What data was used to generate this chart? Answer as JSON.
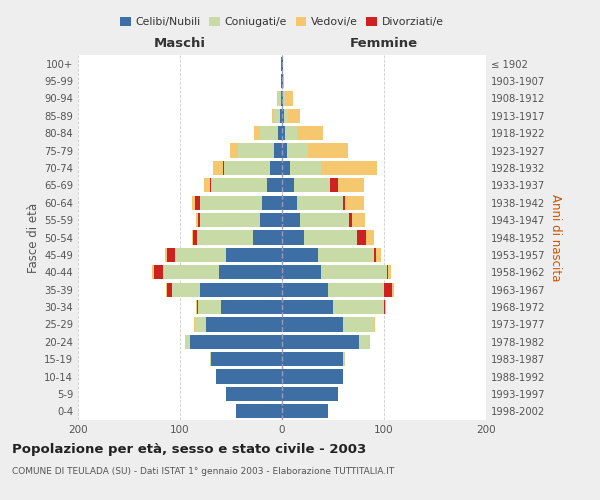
{
  "age_groups": [
    "0-4",
    "5-9",
    "10-14",
    "15-19",
    "20-24",
    "25-29",
    "30-34",
    "35-39",
    "40-44",
    "45-49",
    "50-54",
    "55-59",
    "60-64",
    "65-69",
    "70-74",
    "75-79",
    "80-84",
    "85-89",
    "90-94",
    "95-99",
    "100+"
  ],
  "birth_years": [
    "1998-2002",
    "1993-1997",
    "1988-1992",
    "1983-1987",
    "1978-1982",
    "1973-1977",
    "1968-1972",
    "1963-1967",
    "1958-1962",
    "1953-1957",
    "1948-1952",
    "1943-1947",
    "1938-1942",
    "1933-1937",
    "1928-1932",
    "1923-1927",
    "1918-1922",
    "1913-1917",
    "1908-1912",
    "1903-1907",
    "≤ 1902"
  ],
  "males": {
    "celibi": [
      45,
      55,
      65,
      70,
      90,
      75,
      60,
      80,
      62,
      55,
      28,
      22,
      20,
      15,
      12,
      8,
      4,
      2,
      1,
      1,
      1
    ],
    "coniugati": [
      0,
      0,
      0,
      1,
      5,
      10,
      22,
      28,
      55,
      50,
      55,
      58,
      60,
      55,
      45,
      35,
      18,
      6,
      3,
      0,
      0
    ],
    "vedovi": [
      0,
      0,
      0,
      0,
      0,
      1,
      1,
      1,
      2,
      2,
      1,
      2,
      3,
      5,
      10,
      8,
      5,
      2,
      1,
      0,
      0
    ],
    "divorziati": [
      0,
      0,
      0,
      0,
      0,
      0,
      1,
      5,
      8,
      8,
      4,
      2,
      5,
      1,
      1,
      0,
      0,
      0,
      0,
      0,
      0
    ]
  },
  "females": {
    "nubili": [
      45,
      55,
      60,
      60,
      75,
      60,
      50,
      45,
      38,
      35,
      22,
      18,
      15,
      12,
      8,
      5,
      3,
      2,
      1,
      1,
      1
    ],
    "coniugate": [
      0,
      0,
      0,
      2,
      10,
      30,
      50,
      55,
      65,
      55,
      52,
      48,
      45,
      35,
      30,
      20,
      12,
      4,
      2,
      0,
      0
    ],
    "vedove": [
      0,
      0,
      0,
      0,
      1,
      1,
      1,
      2,
      3,
      5,
      8,
      12,
      18,
      25,
      55,
      40,
      25,
      12,
      8,
      1,
      0
    ],
    "divorziate": [
      0,
      0,
      0,
      0,
      0,
      0,
      1,
      8,
      1,
      2,
      8,
      3,
      2,
      8,
      0,
      0,
      0,
      0,
      0,
      0,
      0
    ]
  },
  "colors": {
    "celibi": "#3d6fa5",
    "coniugati": "#c8daa5",
    "vedovi": "#f5c870",
    "divorziati": "#cc2222"
  },
  "xlim": 200,
  "title": "Popolazione per età, sesso e stato civile - 2003",
  "subtitle": "COMUNE DI TEULADA (SU) - Dati ISTAT 1° gennaio 2003 - Elaborazione TUTTITALIA.IT",
  "ylabel_left": "Fasce di età",
  "ylabel_right": "Anni di nascita",
  "xlabel_maschi": "Maschi",
  "xlabel_femmine": "Femmine",
  "bg_color": "#eeeeee",
  "plot_bg": "#ffffff",
  "legend_labels": [
    "Celibi/Nubili",
    "Coniugati/e",
    "Vedovi/e",
    "Divorziati/e"
  ]
}
